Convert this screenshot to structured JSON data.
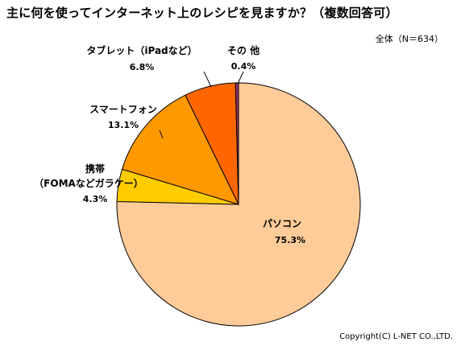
{
  "chart_data": {
    "type": "pie",
    "title": "主に何を使ってインターネット上のレシピを見ますか？（複数回答可）",
    "subtitle": "全体（N＝634）",
    "start_angle_deg": 0,
    "direction": "clockwise",
    "slices": [
      {
        "label": "パソコン",
        "value": 75.3,
        "value_label": "75.3%",
        "color": "#FFCC99"
      },
      {
        "label_lines": [
          "携帯",
          "（FOMAなどガラケー）"
        ],
        "value": 4.3,
        "value_label": "4.3%",
        "color": "#FFCC00"
      },
      {
        "label": "スマートフォン",
        "value": 13.1,
        "value_label": "13.1%",
        "color": "#FF9900"
      },
      {
        "label": "タブレット（iPadなど）",
        "value": 6.8,
        "value_label": "6.8%",
        "color": "#FF6600"
      },
      {
        "label": "その 他",
        "value": 0.4,
        "value_label": "0.4%",
        "color": "#993366"
      }
    ]
  },
  "copyright": "Copyright(C) L-NET CO.,LTD."
}
